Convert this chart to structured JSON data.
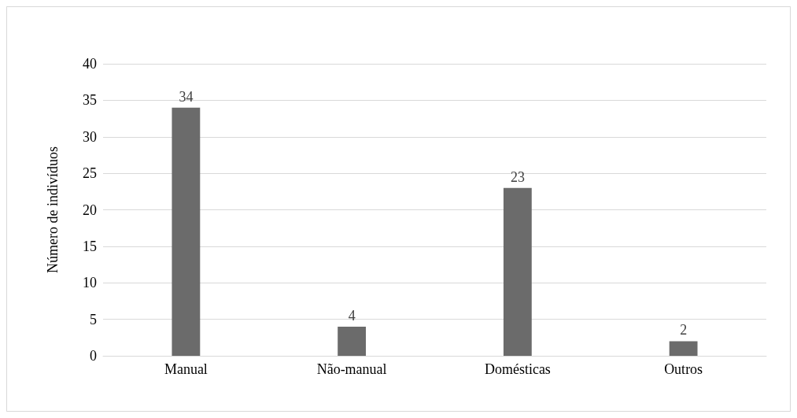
{
  "chart_data": {
    "type": "bar",
    "ylabel": "Número de indivíduos",
    "categories": [
      "Manual",
      "Não-manual",
      "Domésticas",
      "Outros"
    ],
    "values": [
      34,
      4,
      23,
      2
    ],
    "color": "#6b6b6b",
    "ylim": [
      0,
      40
    ],
    "yticks": [
      0,
      5,
      10,
      15,
      20,
      25,
      30,
      35,
      40
    ],
    "grid": "y",
    "data_labels": true
  }
}
